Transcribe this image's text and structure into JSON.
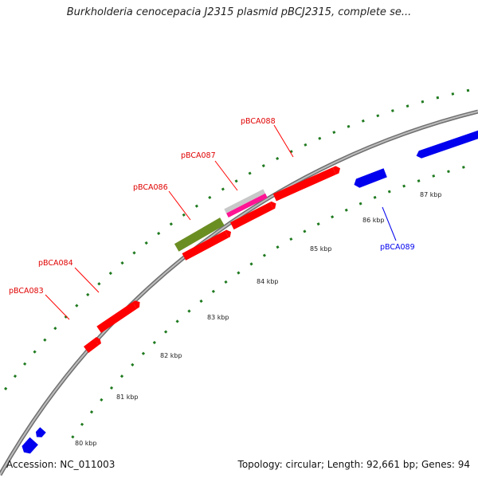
{
  "title": "Burkholderia cenocepacia J2315 plasmid pBCJ2315, complete se...",
  "footer": {
    "accession": "Accession: NC_011003",
    "summary": "Topology: circular; Length: 92,661 bp; Genes: 94"
  },
  "colors": {
    "backbone": "#7a7a7a",
    "tick": "#1f7a1f",
    "forward_gene": "#ff0000",
    "reverse_gene": "#0000ee",
    "pBCA086": "#6b8e23",
    "pBCA087_outer": "#c8c8c8",
    "pBCA087_inner": "#ff1493"
  },
  "scale_labels": [
    "80 kbp",
    "81 kbp",
    "82 kbp",
    "83 kbp",
    "84 kbp",
    "85 kbp",
    "86 kbp",
    "87 kbp"
  ],
  "gene_labels": [
    {
      "name": "pBCA083",
      "strand": "forward"
    },
    {
      "name": "pBCA084",
      "strand": "forward"
    },
    {
      "name": "pBCA086",
      "strand": "forward"
    },
    {
      "name": "pBCA087",
      "strand": "forward"
    },
    {
      "name": "pBCA088",
      "strand": "forward"
    },
    {
      "name": "pBCA089",
      "strand": "reverse"
    }
  ]
}
